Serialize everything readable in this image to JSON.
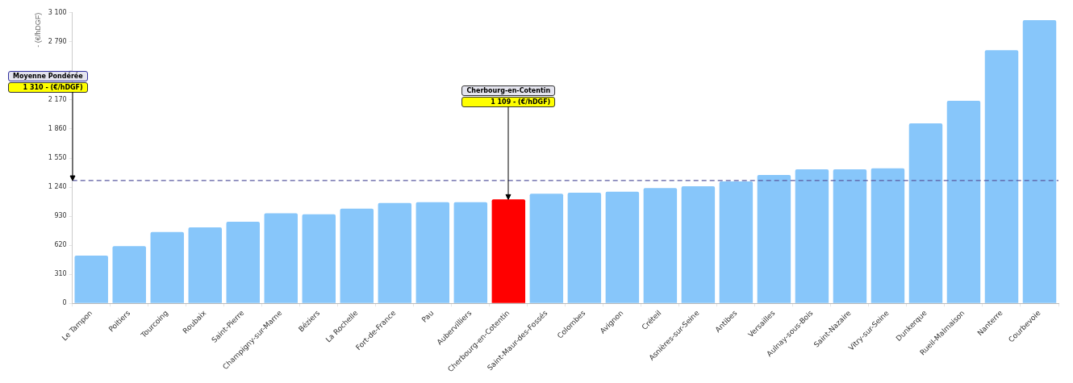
{
  "chart_data": {
    "type": "bar",
    "ylabel": "- (€/hDGF)",
    "categories": [
      "Le Tampon",
      "Poitiers",
      "Tourcoing",
      "Roubaix",
      "Saint-Pierre",
      "Champigny-sur-Marne",
      "Béziers",
      "La Rochelle",
      "Fort-de-France",
      "Pau",
      "Aubervilliers",
      "Cherbourg-en-Cotentin",
      "Saint-Maur-des-Fossés",
      "Colombes",
      "Avignon",
      "Créteil",
      "Asnières-sur-Seine",
      "Antibes",
      "Versailles",
      "Aulnay-sous-Bois",
      "Saint-Nazaire",
      "Vitry-sur-Seine",
      "Dunkerque",
      "Rueil-Malmaison",
      "Nanterre",
      "Courbevoie"
    ],
    "values": [
      510,
      610,
      760,
      810,
      870,
      960,
      950,
      1010,
      1070,
      1080,
      1080,
      1109,
      1170,
      1180,
      1190,
      1230,
      1250,
      1300,
      1370,
      1430,
      1430,
      1440,
      1920,
      2160,
      2700,
      3020
    ],
    "colors": [
      "#87c6fa",
      "#87c6fa",
      "#87c6fa",
      "#87c6fa",
      "#87c6fa",
      "#87c6fa",
      "#87c6fa",
      "#87c6fa",
      "#87c6fa",
      "#87c6fa",
      "#87c6fa",
      "#ff0000",
      "#87c6fa",
      "#87c6fa",
      "#87c6fa",
      "#87c6fa",
      "#87c6fa",
      "#87c6fa",
      "#87c6fa",
      "#87c6fa",
      "#87c6fa",
      "#87c6fa",
      "#87c6fa",
      "#87c6fa",
      "#87c6fa",
      "#87c6fa"
    ],
    "value_labels": [
      null,
      null,
      null,
      null,
      null,
      null,
      null,
      null,
      null,
      null,
      null,
      "1 109 - (€/hDGF)",
      null,
      null,
      null,
      null,
      null,
      null,
      null,
      null,
      null,
      null,
      null,
      null,
      null,
      null
    ],
    "ylim": [
      0,
      3100
    ],
    "yticks": [
      0,
      310,
      620,
      930,
      {
        "value": 1240,
        "label": "1 240"
      },
      {
        "value": 1550,
        "label": "1 550"
      },
      {
        "value": 1860,
        "label": "1 860"
      },
      {
        "value": 2170,
        "label": "2 170"
      },
      {
        "value": 2480,
        "label": null
      },
      {
        "value": 2790,
        "label": "2 790"
      },
      {
        "value": 3100,
        "label": "3 100"
      }
    ],
    "ref_lines": [
      {
        "axis": "y",
        "value": 1310,
        "color": "#5a5aa0",
        "line_style": "dashed"
      }
    ],
    "annotations": [
      "Moyenne Pondérée",
      "1 310 - (€/hDGF)",
      "Cherbourg-en-Cotentin"
    ],
    "grid": false,
    "legend": false
  }
}
